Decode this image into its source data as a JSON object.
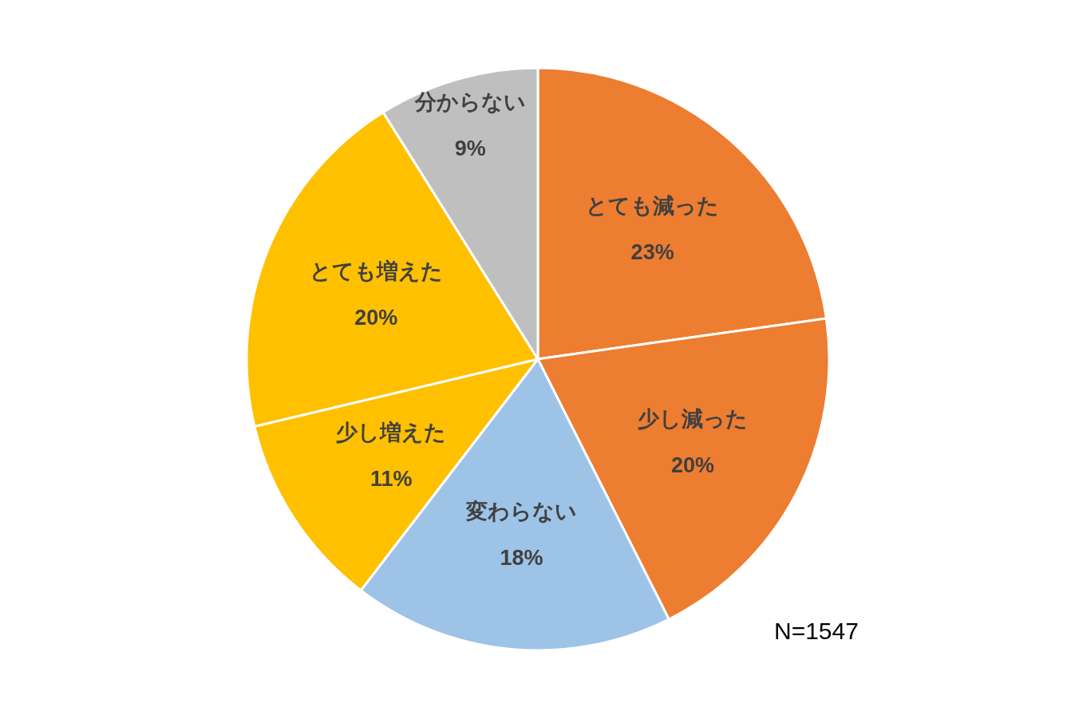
{
  "chart_data": {
    "type": "pie",
    "categories": [
      "とても減った",
      "少し減った",
      "変わらない",
      "少し増えた",
      "とても増えた",
      "分からない"
    ],
    "values": [
      23,
      20,
      18,
      11,
      20,
      9
    ],
    "colors": [
      "#ed7d31",
      "#ed7d31",
      "#9dc3e6",
      "#ffc000",
      "#ffc000",
      "#bfbfbf"
    ],
    "value_labels": [
      "23%",
      "20%",
      "18%",
      "11%",
      "20%",
      "9%"
    ],
    "annotations": [
      "N=1547"
    ],
    "legend": false
  }
}
